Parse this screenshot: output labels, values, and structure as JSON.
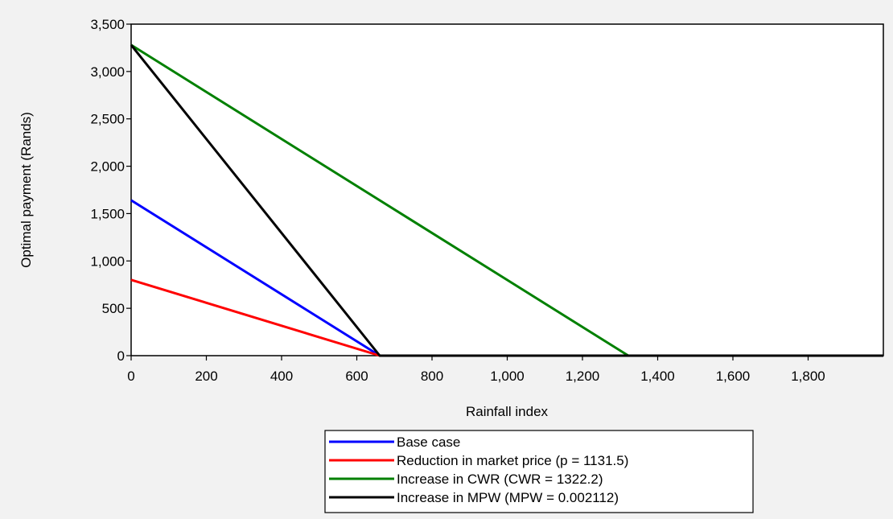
{
  "chart_data": {
    "type": "line",
    "xlabel": "Rainfall index",
    "ylabel": "Optimal payment (Rands)",
    "xlim": [
      0,
      2000
    ],
    "ylim": [
      0,
      3500
    ],
    "x_ticks": [
      0,
      200,
      400,
      600,
      800,
      1000,
      1200,
      1400,
      1600,
      1800
    ],
    "x_tick_labels": [
      "0",
      "200",
      "400",
      "600",
      "800",
      "1,000",
      "1,200",
      "1,400",
      "1,600",
      "1,800"
    ],
    "y_ticks": [
      0,
      500,
      1000,
      1500,
      2000,
      2500,
      3000,
      3500
    ],
    "y_tick_labels": [
      "0",
      "500",
      "1,000",
      "1,500",
      "2,000",
      "2,500",
      "3,000",
      "3,500"
    ],
    "grid": false,
    "legend_position": "bottom-center",
    "series": [
      {
        "name": "Base case",
        "color": "#0000ff",
        "points": [
          [
            0,
            1640
          ],
          [
            661,
            0
          ],
          [
            2000,
            0
          ]
        ]
      },
      {
        "name": "Reduction in market price (p = 1131.5)",
        "color": "#ff0000",
        "points": [
          [
            0,
            800
          ],
          [
            661,
            0
          ],
          [
            2000,
            0
          ]
        ]
      },
      {
        "name": "Increase in CWR (CWR = 1322.2)",
        "color": "#008000",
        "points": [
          [
            0,
            3280
          ],
          [
            1322,
            0
          ],
          [
            2000,
            0
          ]
        ]
      },
      {
        "name": "Increase in MPW (MPW = 0.002112)",
        "color": "#000000",
        "points": [
          [
            0,
            3280
          ],
          [
            661,
            0
          ],
          [
            2000,
            0
          ]
        ]
      }
    ]
  }
}
